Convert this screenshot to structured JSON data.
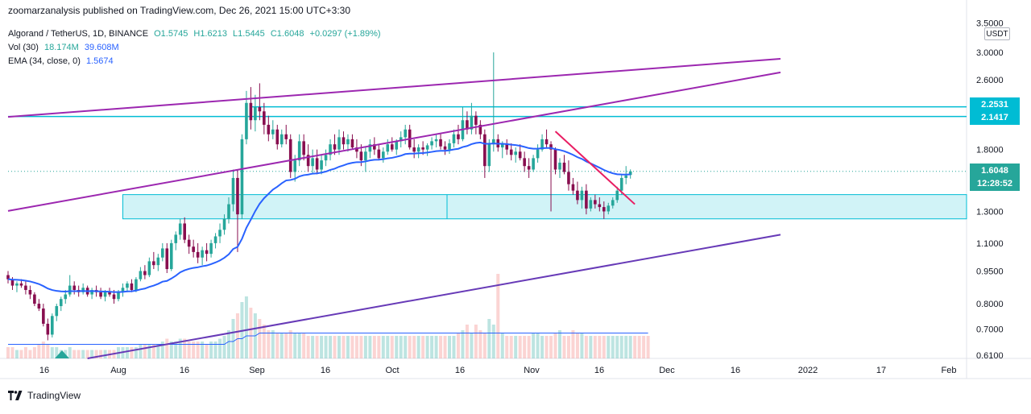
{
  "header": {
    "publisher_line": "zoomarzanalysis published on TradingView.com, Dec 26, 2021 15:00 UTC+3:30"
  },
  "legend": {
    "symbol": "Algorand / TetherUS, 1D, BINANCE",
    "open": "O1.5745",
    "high": "H1.6213",
    "low": "L1.5445",
    "close": "C1.6048",
    "change": "+0.0297 (+1.89%)",
    "vol_label": "Vol (30)",
    "vol_a": "18.174M",
    "vol_b": "39.608M",
    "ema_label": "EMA (34, close, 0)",
    "ema_value": "1.5674"
  },
  "price_axis": {
    "unit": "USDT",
    "ticks": [
      "3.5000",
      "3.0000",
      "2.6000",
      "1.8000",
      "1.3000",
      "1.1000",
      "0.9500",
      "0.8000",
      "0.7000",
      "0.6100"
    ],
    "tags": [
      {
        "label": "2.2531",
        "color": "#00bcd4"
      },
      {
        "label": "2.1417",
        "color": "#00bcd4"
      },
      {
        "label": "1.6048",
        "color": "#26a69a"
      },
      {
        "label": "12:28:52",
        "color": "#26a69a"
      }
    ]
  },
  "time_axis": {
    "labels": [
      "16",
      "Aug",
      "16",
      "Sep",
      "16",
      "Oct",
      "16",
      "Nov",
      "16",
      "Dec",
      "16",
      "2022",
      "17",
      "Feb"
    ]
  },
  "footer": {
    "brand": "TradingView"
  },
  "colors": {
    "up": "#26a69a",
    "down": "#880e4f",
    "ema": "#2962ff",
    "channel": "#9c27b0",
    "zone": "#00bcd4",
    "trend": "#e91e63"
  },
  "chart_data": {
    "type": "candlestick",
    "title": "Algorand / TetherUS, 1D, BINANCE",
    "x_range": [
      "2021-07-07",
      "2022-02-20"
    ],
    "ylim": [
      0.6,
      3.6
    ],
    "y_scale": "log",
    "last_close": 1.6048,
    "series": [
      {
        "name": "ALGOUSDT",
        "values": [
          [
            0.93,
            0.95,
            0.89,
            0.91
          ],
          [
            0.91,
            0.92,
            0.86,
            0.88
          ],
          [
            0.88,
            0.9,
            0.85,
            0.89
          ],
          [
            0.89,
            0.91,
            0.87,
            0.88
          ],
          [
            0.88,
            0.9,
            0.84,
            0.86
          ],
          [
            0.86,
            0.88,
            0.82,
            0.84
          ],
          [
            0.84,
            0.85,
            0.79,
            0.8
          ],
          [
            0.8,
            0.82,
            0.77,
            0.78
          ],
          [
            0.78,
            0.8,
            0.71,
            0.72
          ],
          [
            0.72,
            0.74,
            0.66,
            0.68
          ],
          [
            0.68,
            0.76,
            0.67,
            0.75
          ],
          [
            0.75,
            0.8,
            0.73,
            0.79
          ],
          [
            0.79,
            0.83,
            0.77,
            0.82
          ],
          [
            0.82,
            0.86,
            0.8,
            0.84
          ],
          [
            0.84,
            0.93,
            0.83,
            0.88
          ],
          [
            0.88,
            0.9,
            0.84,
            0.86
          ],
          [
            0.86,
            0.88,
            0.83,
            0.85
          ],
          [
            0.85,
            0.89,
            0.84,
            0.87
          ],
          [
            0.87,
            0.88,
            0.83,
            0.84
          ],
          [
            0.84,
            0.87,
            0.82,
            0.86
          ],
          [
            0.86,
            0.88,
            0.83,
            0.85
          ],
          [
            0.85,
            0.87,
            0.82,
            0.83
          ],
          [
            0.83,
            0.86,
            0.81,
            0.85
          ],
          [
            0.85,
            0.87,
            0.83,
            0.84
          ],
          [
            0.84,
            0.86,
            0.8,
            0.82
          ],
          [
            0.82,
            0.86,
            0.81,
            0.85
          ],
          [
            0.85,
            0.89,
            0.83,
            0.87
          ],
          [
            0.87,
            0.9,
            0.85,
            0.89
          ],
          [
            0.89,
            0.91,
            0.85,
            0.86
          ],
          [
            0.86,
            0.92,
            0.85,
            0.91
          ],
          [
            0.91,
            0.97,
            0.9,
            0.95
          ],
          [
            0.95,
            0.98,
            0.91,
            0.93
          ],
          [
            0.93,
            1.02,
            0.92,
            1.0
          ],
          [
            1.0,
            1.05,
            0.96,
            0.98
          ],
          [
            0.98,
            1.04,
            0.95,
            1.02
          ],
          [
            1.02,
            1.1,
            1.0,
            1.07
          ],
          [
            1.07,
            1.1,
            0.94,
            0.96
          ],
          [
            0.96,
            1.12,
            0.95,
            1.1
          ],
          [
            1.1,
            1.17,
            1.06,
            1.15
          ],
          [
            1.15,
            1.25,
            1.12,
            1.22
          ],
          [
            1.22,
            1.26,
            1.1,
            1.12
          ],
          [
            1.12,
            1.15,
            1.04,
            1.08
          ],
          [
            1.08,
            1.12,
            1.02,
            1.05
          ],
          [
            1.05,
            1.1,
            0.99,
            1.02
          ],
          [
            1.02,
            1.08,
            0.98,
            1.06
          ],
          [
            1.06,
            1.1,
            1.0,
            1.04
          ],
          [
            1.04,
            1.12,
            1.02,
            1.1
          ],
          [
            1.1,
            1.16,
            1.07,
            1.14
          ],
          [
            1.14,
            1.22,
            1.1,
            1.18
          ],
          [
            1.18,
            1.28,
            1.15,
            1.25
          ],
          [
            1.25,
            1.4,
            1.22,
            1.35
          ],
          [
            1.35,
            1.62,
            1.3,
            1.55
          ],
          [
            1.55,
            1.62,
            1.05,
            1.28
          ],
          [
            1.28,
            1.95,
            1.25,
            1.9
          ],
          [
            1.9,
            2.45,
            1.85,
            2.3
          ],
          [
            2.3,
            2.5,
            2.0,
            2.1
          ],
          [
            2.1,
            2.4,
            1.98,
            2.25
          ],
          [
            2.25,
            2.55,
            2.1,
            2.2
          ],
          [
            2.2,
            2.3,
            1.95,
            2.05
          ],
          [
            2.05,
            2.15,
            1.88,
            1.95
          ],
          [
            1.95,
            2.1,
            1.9,
            2.0
          ],
          [
            2.0,
            2.05,
            1.8,
            1.85
          ],
          [
            1.85,
            2.0,
            1.82,
            1.95
          ],
          [
            1.95,
            2.05,
            1.85,
            1.9
          ],
          [
            1.9,
            1.95,
            1.55,
            1.6
          ],
          [
            1.6,
            1.75,
            1.52,
            1.7
          ],
          [
            1.7,
            1.95,
            1.65,
            1.88
          ],
          [
            1.88,
            1.95,
            1.7,
            1.75
          ],
          [
            1.75,
            1.85,
            1.6,
            1.65
          ],
          [
            1.65,
            1.8,
            1.58,
            1.72
          ],
          [
            1.72,
            1.8,
            1.58,
            1.62
          ],
          [
            1.62,
            1.75,
            1.58,
            1.7
          ],
          [
            1.7,
            1.8,
            1.65,
            1.75
          ],
          [
            1.75,
            1.9,
            1.7,
            1.85
          ],
          [
            1.85,
            1.95,
            1.75,
            1.8
          ],
          [
            1.8,
            2.0,
            1.75,
            1.92
          ],
          [
            1.92,
            1.98,
            1.8,
            1.85
          ],
          [
            1.85,
            1.95,
            1.78,
            1.9
          ],
          [
            1.9,
            1.95,
            1.8,
            1.82
          ],
          [
            1.82,
            1.9,
            1.72,
            1.78
          ],
          [
            1.78,
            1.85,
            1.65,
            1.7
          ],
          [
            1.7,
            1.82,
            1.6,
            1.78
          ],
          [
            1.78,
            1.9,
            1.72,
            1.85
          ],
          [
            1.85,
            1.92,
            1.75,
            1.8
          ],
          [
            1.8,
            1.85,
            1.7,
            1.72
          ],
          [
            1.72,
            1.82,
            1.68,
            1.78
          ],
          [
            1.78,
            1.9,
            1.75,
            1.85
          ],
          [
            1.85,
            1.92,
            1.78,
            1.8
          ],
          [
            1.8,
            1.9,
            1.75,
            1.88
          ],
          [
            1.88,
            1.98,
            1.82,
            1.92
          ],
          [
            1.92,
            2.05,
            1.85,
            2.0
          ],
          [
            2.0,
            2.05,
            1.8,
            1.82
          ],
          [
            1.82,
            1.9,
            1.72,
            1.78
          ],
          [
            1.78,
            1.85,
            1.72,
            1.82
          ],
          [
            1.82,
            1.88,
            1.75,
            1.8
          ],
          [
            1.8,
            1.86,
            1.74,
            1.84
          ],
          [
            1.84,
            1.92,
            1.8,
            1.88
          ],
          [
            1.88,
            1.95,
            1.82,
            1.9
          ],
          [
            1.9,
            1.96,
            1.8,
            1.83
          ],
          [
            1.83,
            1.88,
            1.75,
            1.8
          ],
          [
            1.8,
            1.9,
            1.76,
            1.86
          ],
          [
            1.86,
            2.0,
            1.82,
            1.95
          ],
          [
            1.95,
            2.05,
            1.85,
            1.9
          ],
          [
            1.9,
            2.25,
            1.88,
            2.1
          ],
          [
            2.1,
            2.2,
            1.95,
            2.0
          ],
          [
            2.0,
            2.3,
            1.95,
            2.15
          ],
          [
            2.15,
            2.2,
            1.95,
            2.05
          ],
          [
            2.05,
            2.1,
            1.9,
            1.95
          ],
          [
            1.95,
            2.0,
            1.55,
            1.65
          ],
          [
            1.65,
            1.9,
            1.6,
            1.85
          ],
          [
            1.85,
            3.0,
            1.78,
            1.9
          ],
          [
            1.9,
            1.95,
            1.78,
            1.82
          ],
          [
            1.82,
            1.88,
            1.72,
            1.85
          ],
          [
            1.85,
            1.9,
            1.75,
            1.8
          ],
          [
            1.8,
            1.86,
            1.7,
            1.75
          ],
          [
            1.75,
            1.82,
            1.68,
            1.78
          ],
          [
            1.78,
            1.85,
            1.7,
            1.72
          ],
          [
            1.72,
            1.78,
            1.6,
            1.65
          ],
          [
            1.65,
            1.72,
            1.55,
            1.62
          ],
          [
            1.62,
            1.75,
            1.6,
            1.72
          ],
          [
            1.72,
            1.85,
            1.68,
            1.8
          ],
          [
            1.8,
            1.95,
            1.78,
            1.9
          ],
          [
            1.9,
            2.0,
            1.82,
            1.85
          ],
          [
            1.85,
            1.88,
            1.3,
            1.8
          ],
          [
            1.8,
            1.82,
            1.58,
            1.62
          ],
          [
            1.62,
            1.72,
            1.55,
            1.68
          ],
          [
            1.68,
            1.75,
            1.58,
            1.6
          ],
          [
            1.6,
            1.7,
            1.45,
            1.5
          ],
          [
            1.5,
            1.55,
            1.42,
            1.45
          ],
          [
            1.45,
            1.52,
            1.35,
            1.38
          ],
          [
            1.38,
            1.48,
            1.32,
            1.45
          ],
          [
            1.45,
            1.5,
            1.28,
            1.32
          ],
          [
            1.32,
            1.4,
            1.3,
            1.38
          ],
          [
            1.38,
            1.42,
            1.32,
            1.35
          ],
          [
            1.35,
            1.4,
            1.3,
            1.33
          ],
          [
            1.33,
            1.37,
            1.25,
            1.3
          ],
          [
            1.3,
            1.36,
            1.28,
            1.34
          ],
          [
            1.34,
            1.4,
            1.32,
            1.38
          ],
          [
            1.38,
            1.48,
            1.36,
            1.45
          ],
          [
            1.45,
            1.58,
            1.42,
            1.55
          ],
          [
            1.55,
            1.65,
            1.5,
            1.57
          ],
          [
            1.5745,
            1.6213,
            1.5445,
            1.6048
          ]
        ]
      },
      {
        "name": "EMA (34, close, 0)",
        "last": 1.5674
      }
    ],
    "volume": [
      4,
      4,
      3,
      3,
      4,
      3,
      4,
      5,
      6,
      5,
      4,
      4,
      3,
      3,
      4,
      3,
      3,
      3,
      3,
      3,
      3,
      3,
      3,
      3,
      3,
      4,
      4,
      4,
      4,
      4,
      5,
      5,
      5,
      5,
      5,
      6,
      7,
      6,
      6,
      7,
      7,
      6,
      6,
      6,
      6,
      5,
      6,
      6,
      7,
      8,
      10,
      14,
      16,
      20,
      22,
      18,
      16,
      14,
      12,
      10,
      10,
      9,
      9,
      9,
      10,
      9,
      9,
      9,
      8,
      8,
      8,
      8,
      8,
      8,
      8,
      8,
      8,
      8,
      8,
      8,
      8,
      8,
      8,
      8,
      8,
      8,
      8,
      8,
      8,
      8,
      8,
      8,
      8,
      8,
      8,
      8,
      8,
      8,
      8,
      8,
      8,
      8,
      9,
      10,
      12,
      9,
      12,
      10,
      9,
      14,
      12,
      30,
      9,
      8,
      8,
      8,
      8,
      8,
      8,
      9,
      9,
      8,
      8,
      8,
      9,
      10,
      8,
      8,
      10,
      9,
      9,
      8,
      8,
      8,
      8,
      8,
      8,
      8,
      8,
      8,
      8,
      8,
      8,
      8,
      8,
      8
    ],
    "volume_ma": [
      5,
      5,
      5,
      5,
      5,
      5,
      5,
      5,
      5,
      5,
      5,
      5,
      5,
      5,
      5,
      5,
      5,
      5,
      5,
      5,
      5,
      5,
      5,
      5,
      5,
      5,
      5,
      5,
      5,
      5,
      5,
      5,
      5,
      5,
      5,
      5,
      5,
      5,
      5,
      5,
      5,
      5,
      5,
      5,
      5,
      5,
      5,
      5,
      5,
      5,
      6,
      6,
      7,
      7,
      8,
      8,
      8,
      9,
      9,
      9,
      9,
      9,
      9,
      9,
      9,
      9,
      9,
      9,
      9,
      9,
      9,
      9,
      9,
      9,
      9,
      9,
      9,
      9,
      9,
      9,
      9,
      9,
      9,
      9,
      9,
      9,
      9,
      9,
      9,
      9,
      9,
      9,
      9,
      9,
      9,
      9,
      9,
      9,
      9,
      9,
      9,
      9,
      9,
      9,
      9,
      9,
      9,
      9,
      9,
      9,
      9,
      9,
      9,
      9,
      9,
      9,
      9,
      9,
      9,
      9,
      9,
      9,
      9,
      9,
      9,
      9,
      9,
      9,
      9,
      9,
      9,
      9,
      9,
      9,
      9,
      9,
      9,
      9,
      9,
      9,
      9,
      9,
      9,
      9,
      9,
      9
    ],
    "lines": [
      {
        "name": "upper-channel",
        "color": "#9c27b0",
        "p1": {
          "t": -10,
          "price": 2.1
        },
        "p2": {
          "t": 175,
          "price": 2.9
        }
      },
      {
        "name": "upper-channel-ext",
        "color": "#9c27b0",
        "p1": {
          "t": -10,
          "price": 1.25
        },
        "p2": {
          "t": 175,
          "price": 2.7
        }
      },
      {
        "name": "lower-channel",
        "color": "#673ab7",
        "p1": {
          "t": 18,
          "price": 0.6
        },
        "p2": {
          "t": 175,
          "price": 1.15
        }
      },
      {
        "name": "trendline",
        "color": "#e91e63",
        "p1": {
          "t": 124,
          "price": 1.98
        },
        "p2": {
          "t": 142,
          "price": 1.35
        }
      },
      {
        "name": "resistance-1",
        "color": "#00bcd4",
        "price": 2.2531,
        "from": 55
      },
      {
        "name": "resistance-2",
        "color": "#00bcd4",
        "price": 2.1417,
        "from": 0
      }
    ],
    "zones": [
      {
        "name": "support-zone",
        "price_top": 1.42,
        "price_bottom": 1.25,
        "from": 26
      }
    ]
  }
}
